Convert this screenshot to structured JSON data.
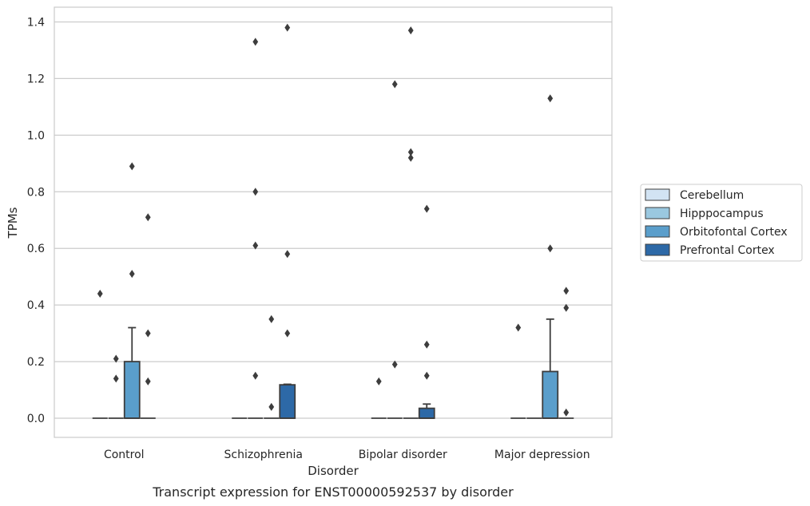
{
  "chart_data": {
    "type": "box",
    "caption": "Transcript expression for ENST00000592537 by disorder",
    "xlabel": "Disorder",
    "ylabel": "TPMs",
    "ylim": [
      -0.07,
      1.45
    ],
    "yticks": [
      "0.0",
      "0.2",
      "0.4",
      "0.6",
      "0.8",
      "1.0",
      "1.2",
      "1.4"
    ],
    "categories": [
      "Control",
      "Schizophrenia",
      "Bipolar disorder",
      "Major depression"
    ],
    "grid": "horizontal",
    "legend_position": "right",
    "series": [
      {
        "name": "Cerebellum",
        "color": "#d2e3f3",
        "boxes": [
          {
            "q1": 0,
            "median": 0,
            "q3": 0,
            "whisker_low": 0,
            "whisker_high": 0,
            "outliers": [
              0.44
            ]
          },
          {
            "q1": 0,
            "median": 0,
            "q3": 0,
            "whisker_low": 0,
            "whisker_high": 0,
            "outliers": []
          },
          {
            "q1": 0,
            "median": 0,
            "q3": 0,
            "whisker_low": 0,
            "whisker_high": 0,
            "outliers": [
              0.13
            ]
          },
          {
            "q1": 0,
            "median": 0,
            "q3": 0,
            "whisker_low": 0,
            "whisker_high": 0,
            "outliers": [
              0.32
            ]
          }
        ]
      },
      {
        "name": "Hipppocampus",
        "color": "#9ac8e0",
        "boxes": [
          {
            "q1": 0,
            "median": 0,
            "q3": 0,
            "whisker_low": 0,
            "whisker_high": 0,
            "outliers": [
              0.21,
              0.14
            ]
          },
          {
            "q1": 0,
            "median": 0,
            "q3": 0,
            "whisker_low": 0,
            "whisker_high": 0,
            "outliers": [
              1.33,
              0.8,
              0.61,
              0.15
            ]
          },
          {
            "q1": 0,
            "median": 0,
            "q3": 0,
            "whisker_low": 0,
            "whisker_high": 0,
            "outliers": [
              1.18,
              0.19
            ]
          },
          {
            "q1": 0,
            "median": 0,
            "q3": 0,
            "whisker_low": 0,
            "whisker_high": 0,
            "outliers": []
          }
        ]
      },
      {
        "name": "Orbitofontal Cortex",
        "color": "#5a9ecb",
        "boxes": [
          {
            "q1": 0,
            "median": 0,
            "q3": 0.2,
            "whisker_low": 0,
            "whisker_high": 0.32,
            "outliers": [
              0.89,
              0.51
            ]
          },
          {
            "q1": 0,
            "median": 0,
            "q3": 0,
            "whisker_low": 0,
            "whisker_high": 0,
            "outliers": [
              0.35,
              0.04
            ]
          },
          {
            "q1": 0,
            "median": 0,
            "q3": 0,
            "whisker_low": 0,
            "whisker_high": 0,
            "outliers": [
              1.37,
              0.94,
              0.92
            ]
          },
          {
            "q1": 0,
            "median": 0,
            "q3": 0.165,
            "whisker_low": 0,
            "whisker_high": 0.35,
            "outliers": [
              1.13,
              0.6
            ]
          }
        ]
      },
      {
        "name": "Prefrontal Cortex",
        "color": "#2d69a7",
        "boxes": [
          {
            "q1": 0,
            "median": 0,
            "q3": 0,
            "whisker_low": 0,
            "whisker_high": 0,
            "outliers": [
              0.71,
              0.3,
              0.13
            ]
          },
          {
            "q1": 0,
            "median": 0,
            "q3": 0.118,
            "whisker_low": 0,
            "whisker_high": 0.12,
            "outliers": [
              1.38,
              0.58,
              0.3
            ]
          },
          {
            "q1": 0,
            "median": 0,
            "q3": 0.035,
            "whisker_low": 0,
            "whisker_high": 0.05,
            "outliers": [
              0.74,
              0.26,
              0.15
            ]
          },
          {
            "q1": 0,
            "median": 0,
            "q3": 0,
            "whisker_low": 0,
            "whisker_high": 0,
            "outliers": [
              0.45,
              0.39,
              0.02
            ]
          }
        ]
      }
    ]
  }
}
